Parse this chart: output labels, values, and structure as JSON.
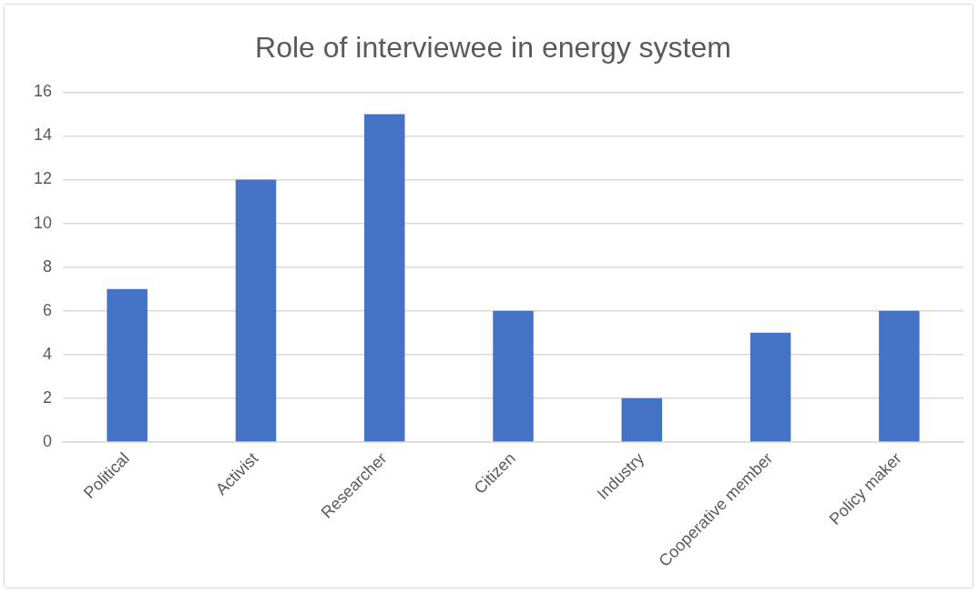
{
  "chart_data": {
    "type": "bar",
    "title": "Role of interviewee in energy system",
    "categories": [
      "Political",
      "Activist",
      "Researcher",
      "Citizen",
      "Industry",
      "Cooperative member",
      "Policy maker"
    ],
    "values": [
      7,
      12,
      15,
      6,
      2,
      5,
      6
    ],
    "color": "#4472c4",
    "ylim": [
      0,
      16
    ],
    "yticks": [
      0,
      2,
      4,
      6,
      8,
      10,
      12,
      14,
      16
    ],
    "grid": "y"
  }
}
